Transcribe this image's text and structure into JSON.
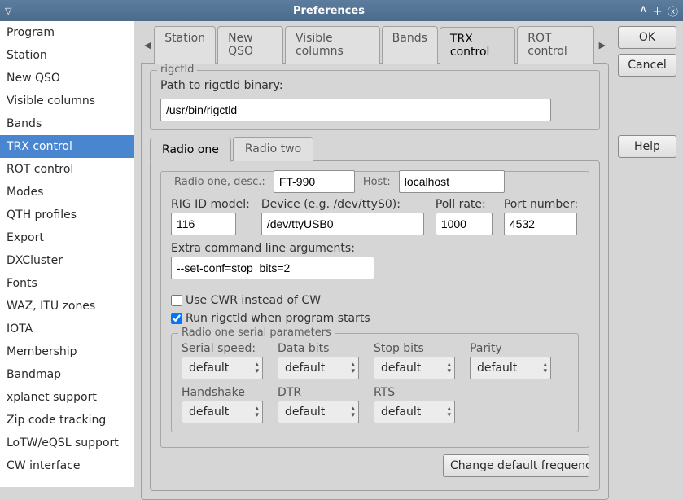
{
  "window": {
    "title": "Preferences"
  },
  "sidebar": {
    "items": [
      "Program",
      "Station",
      "New QSO",
      "Visible columns",
      "Bands",
      "TRX control",
      "ROT control",
      "Modes",
      "QTH profiles",
      "Export",
      "DXCluster",
      "Fonts",
      "WAZ, ITU zones",
      "IOTA",
      "Membership",
      "Bandmap",
      "xplanet support",
      "Zip code tracking",
      "LoTW/eQSL support",
      "CW interface"
    ],
    "selected_index": 5
  },
  "top_tabs": {
    "items": [
      "Station",
      "New QSO",
      "Visible columns",
      "Bands",
      "TRX control",
      "ROT control"
    ],
    "active_index": 4
  },
  "rigctld": {
    "legend": "rigctld",
    "path_label": "Path to rigctld binary:",
    "path_value": "/usr/bin/rigctld"
  },
  "radio_tabs": {
    "items": [
      "Radio one",
      "Radio two"
    ],
    "active_index": 0
  },
  "radio_one": {
    "legend": "Radio one, desc.:",
    "desc_value": "FT-990",
    "host_label": "Host:",
    "host_value": "localhost",
    "rig_id_label": "RIG ID model:",
    "rig_id_value": "116",
    "device_label": "Device (e.g. /dev/ttyS0):",
    "device_value": "/dev/ttyUSB0",
    "poll_label": "Poll rate:",
    "poll_value": "1000",
    "port_label": "Port number:",
    "port_value": "4532",
    "extra_label": "Extra command line arguments:",
    "extra_value": "--set-conf=stop_bits=2",
    "cwr_label": "Use CWR instead of CW",
    "cwr_checked": false,
    "autorun_label": "Run rigctld when program starts",
    "autorun_checked": true
  },
  "serial": {
    "legend": "Radio one serial parameters",
    "speed_label": "Serial speed:",
    "data_bits_label": "Data bits",
    "stop_bits_label": "Stop bits",
    "parity_label": "Parity",
    "handshake_label": "Handshake",
    "dtr_label": "DTR",
    "rts_label": "RTS",
    "default_value": "default"
  },
  "bottom_button": "Change default frequencies",
  "buttons": {
    "ok": "OK",
    "cancel": "Cancel",
    "help": "Help"
  },
  "colors": {
    "titlebar_from": "#5c7d9e",
    "titlebar_to": "#4a6b8c",
    "selection": "#4a86cf",
    "panel_bg": "#d6d6d6",
    "border": "#a0a0a0"
  }
}
